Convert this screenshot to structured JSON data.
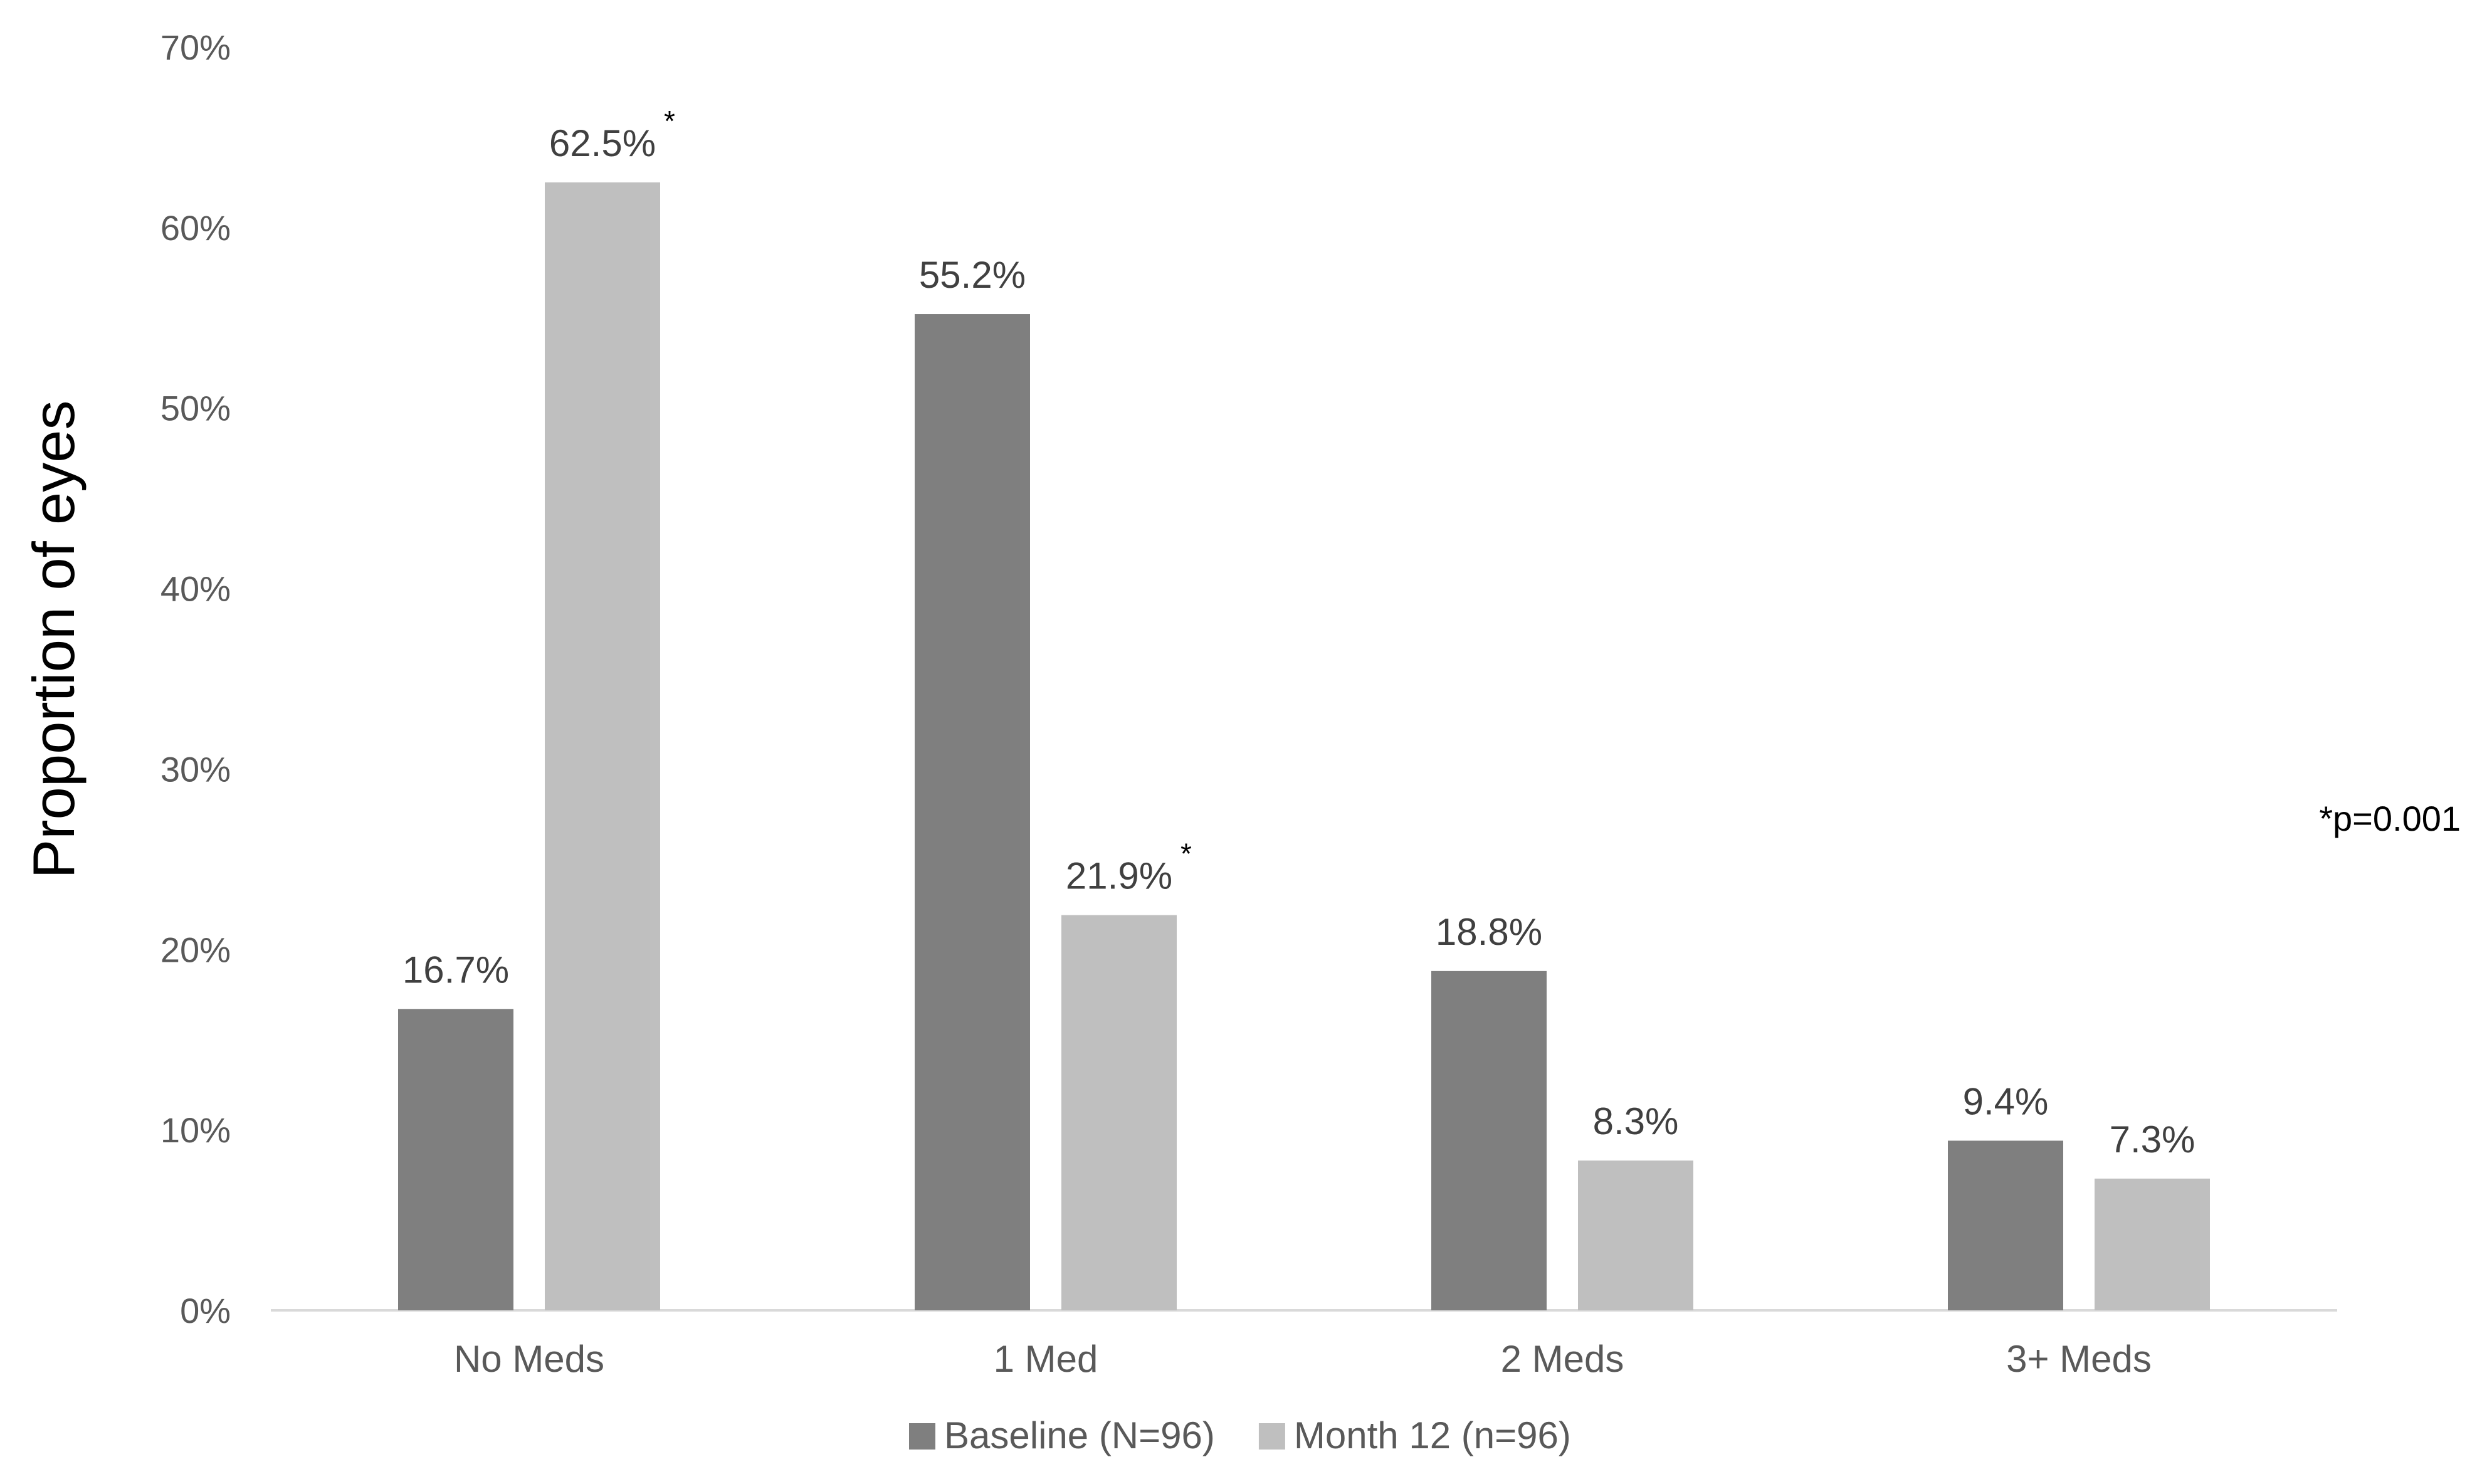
{
  "chart_data": {
    "type": "bar",
    "title": "",
    "xlabel": "",
    "ylabel": "Proportion of eyes",
    "ylim": [
      0,
      70
    ],
    "yticks": [
      "0%",
      "10%",
      "20%",
      "30%",
      "40%",
      "50%",
      "60%",
      "70%"
    ],
    "categories": [
      "No Meds",
      "1 Med",
      "2 Meds",
      "3+ Meds"
    ],
    "series": [
      {
        "name": "Baseline (N=96)",
        "color": "#7f7f7f",
        "values": [
          16.7,
          55.2,
          18.8,
          9.4
        ],
        "labels": [
          "16.7%",
          "55.2%",
          "18.8%",
          "9.4%"
        ],
        "significance": [
          "",
          "",
          "",
          ""
        ]
      },
      {
        "name": "Month 12 (n=96)",
        "color": "#bfbfbf",
        "values": [
          62.5,
          21.9,
          8.3,
          7.3
        ],
        "labels": [
          "62.5%",
          "21.9%",
          "8.3%",
          "7.3%"
        ],
        "significance": [
          "*",
          "*",
          "",
          ""
        ]
      }
    ],
    "annotation": "*p=0.001",
    "grid": false,
    "legend_position": "bottom"
  }
}
